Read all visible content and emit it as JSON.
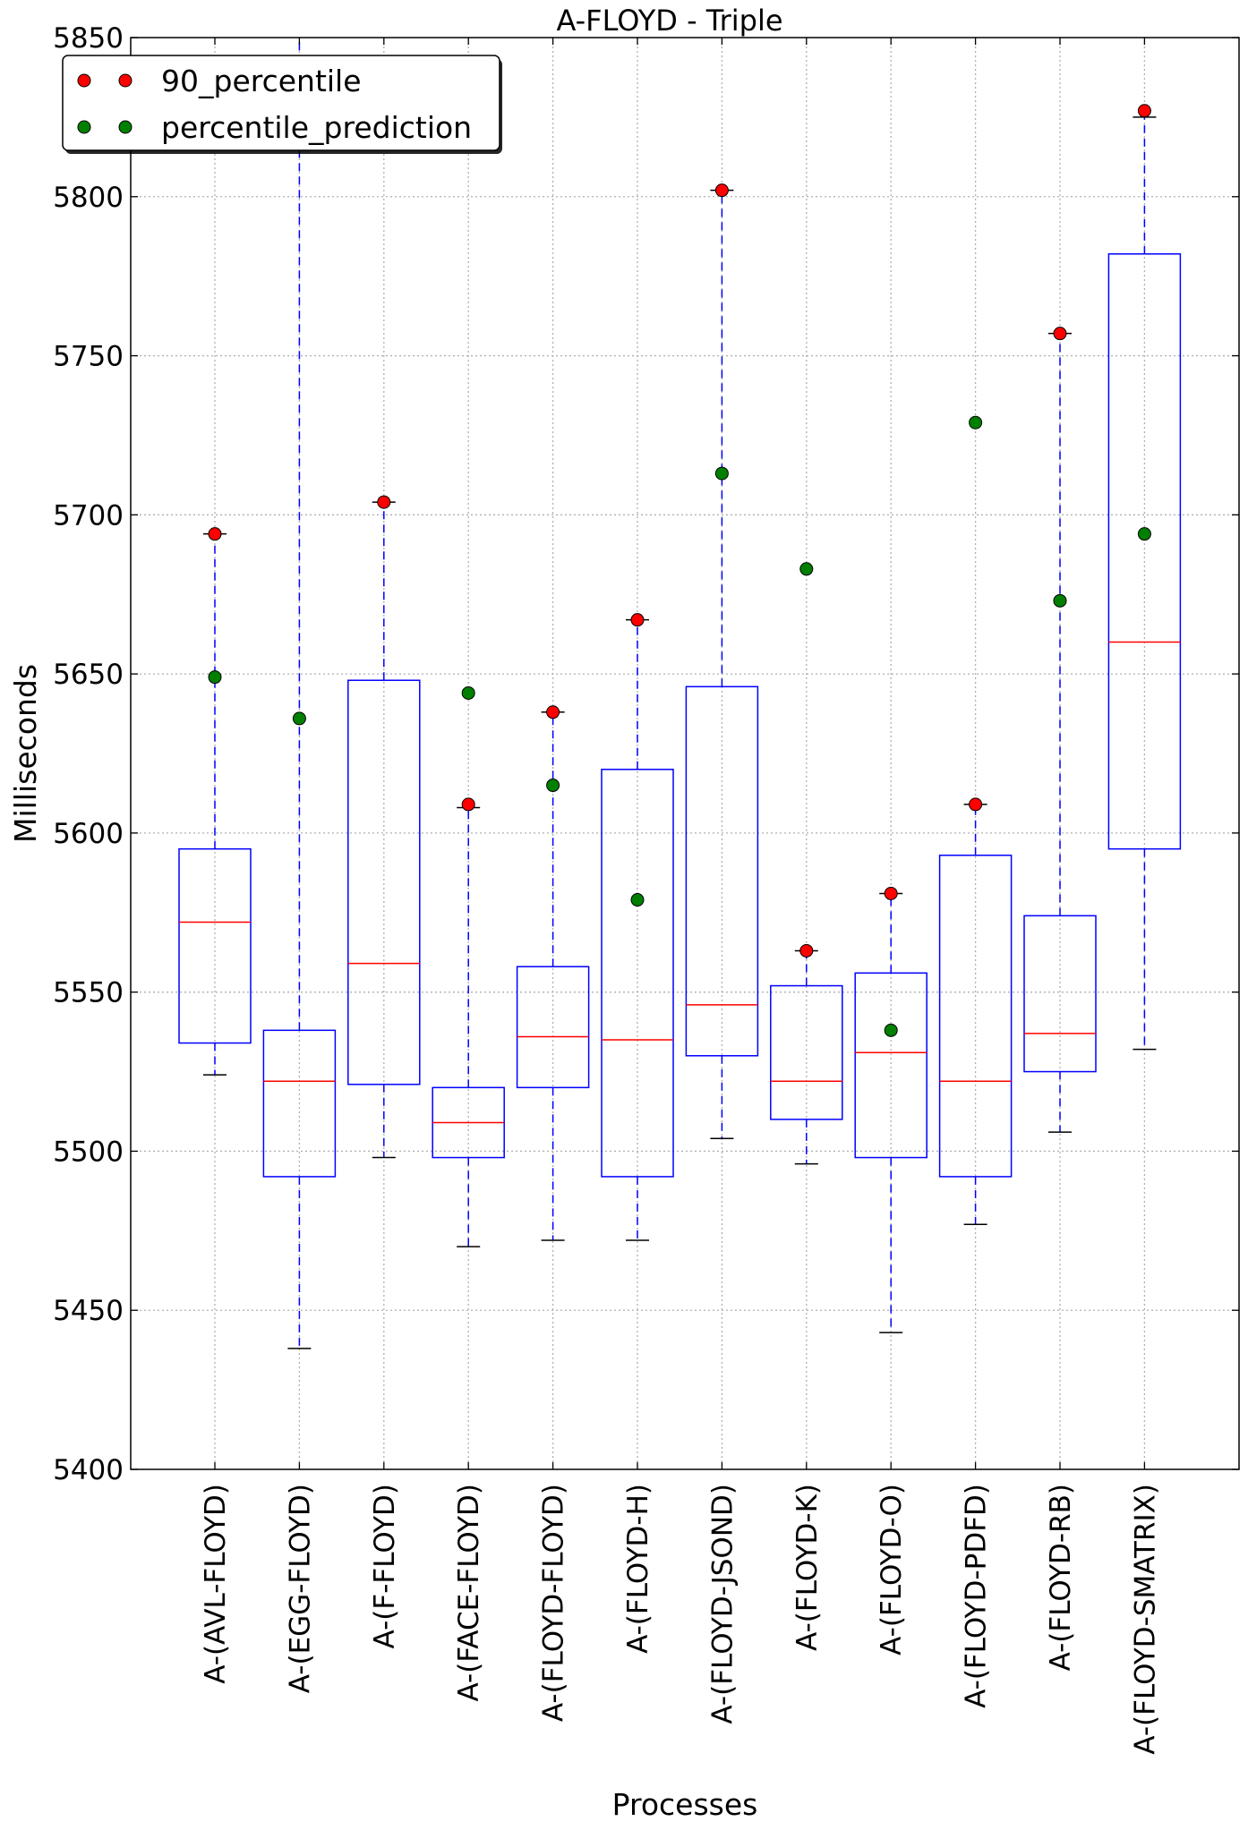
{
  "chart_data": {
    "type": "box",
    "title": "A-FLOYD - Triple",
    "xlabel": "Processes",
    "ylabel": "Milliseconds",
    "ylim": [
      5400,
      5850
    ],
    "yticks": [
      5400,
      5450,
      5500,
      5550,
      5600,
      5650,
      5700,
      5750,
      5800,
      5850
    ],
    "grid": true,
    "legend_position": "top-left",
    "colors": {
      "box": "#0000ff",
      "median": "#ff0000",
      "whisker": "#0000ff",
      "cap": "#000000",
      "percentile_90": "#ff0000",
      "prediction": "#007f00",
      "grid": "#b0b0b0"
    },
    "legend": [
      {
        "label": "90_percentile",
        "color": "#ff0000"
      },
      {
        "label": "percentile_prediction",
        "color": "#007f00"
      }
    ],
    "categories": [
      "A-(AVL-FLOYD)",
      "A-(EGG-FLOYD)",
      "A-(F-FLOYD)",
      "A-(FACE-FLOYD)",
      "A-(FLOYD-FLOYD)",
      "A-(FLOYD-H)",
      "A-(FLOYD-JSOND)",
      "A-(FLOYD-K)",
      "A-(FLOYD-O)",
      "A-(FLOYD-PDFD)",
      "A-(FLOYD-RB)",
      "A-(FLOYD-SMATRIX)"
    ],
    "boxes": [
      {
        "whislo": 5524,
        "q1": 5534,
        "med": 5572,
        "q3": 5595,
        "whishi": 5694
      },
      {
        "whislo": 5438,
        "q1": 5492,
        "med": 5522,
        "q3": 5538,
        "whishi": 5900
      },
      {
        "whislo": 5498,
        "q1": 5521,
        "med": 5559,
        "q3": 5648,
        "whishi": 5704
      },
      {
        "whislo": 5470,
        "q1": 5498,
        "med": 5509,
        "q3": 5520,
        "whishi": 5608
      },
      {
        "whislo": 5472,
        "q1": 5520,
        "med": 5536,
        "q3": 5558,
        "whishi": 5638
      },
      {
        "whislo": 5472,
        "q1": 5492,
        "med": 5535,
        "q3": 5620,
        "whishi": 5667
      },
      {
        "whislo": 5504,
        "q1": 5530,
        "med": 5546,
        "q3": 5646,
        "whishi": 5802
      },
      {
        "whislo": 5496,
        "q1": 5510,
        "med": 5522,
        "q3": 5552,
        "whishi": 5563
      },
      {
        "whislo": 5443,
        "q1": 5498,
        "med": 5531,
        "q3": 5556,
        "whishi": 5581
      },
      {
        "whislo": 5477,
        "q1": 5492,
        "med": 5522,
        "q3": 5593,
        "whishi": 5609
      },
      {
        "whislo": 5506,
        "q1": 5525,
        "med": 5537,
        "q3": 5574,
        "whishi": 5757
      },
      {
        "whislo": 5532,
        "q1": 5595,
        "med": 5660,
        "q3": 5782,
        "whishi": 5825
      }
    ],
    "series": [
      {
        "name": "90_percentile",
        "values": [
          5694,
          null,
          5704,
          5609,
          5638,
          5667,
          5802,
          5563,
          5581,
          5609,
          5757,
          5827
        ]
      },
      {
        "name": "percentile_prediction",
        "values": [
          5649,
          5636,
          null,
          5644,
          5615,
          5579,
          5713,
          5683,
          5538,
          5729,
          5673,
          5694
        ]
      }
    ]
  }
}
